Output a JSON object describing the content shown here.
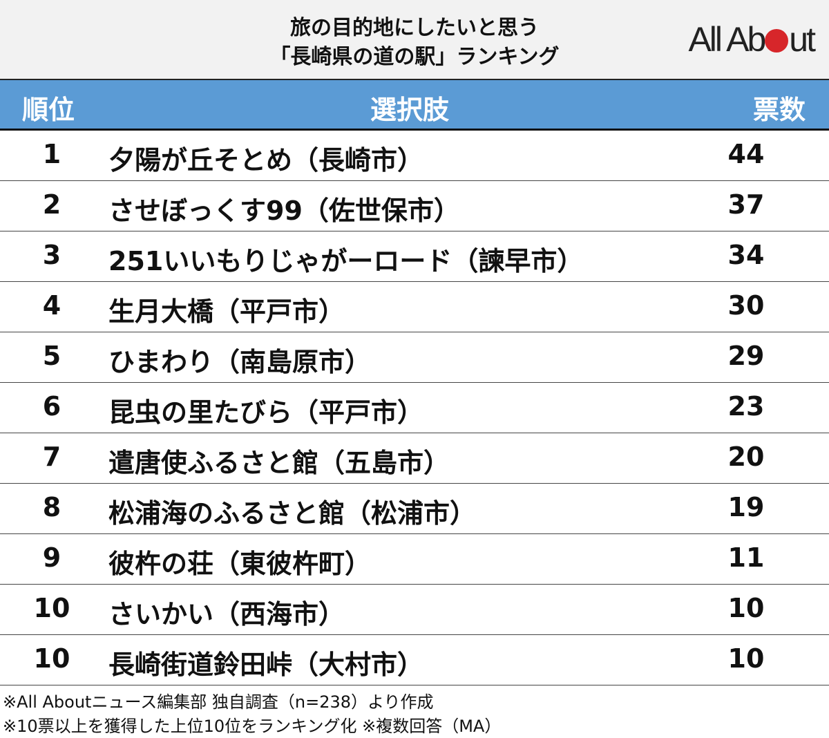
{
  "title_line1": "旅の目的地にしたいと思う",
  "title_line2": "「長崎県の道の駅」ランキング",
  "logo_text": "All About",
  "colors": {
    "header_bg": "#5b9bd5",
    "top_bg": "#f2f2f2",
    "logo_dot": "#d7262a"
  },
  "chart_data": {
    "type": "table",
    "columns": [
      "順位",
      "選択肢",
      "票数"
    ],
    "rows": [
      {
        "rank": "1",
        "name": "夕陽が丘そとめ（長崎市）",
        "votes": 44
      },
      {
        "rank": "2",
        "name": "させぼっくす99（佐世保市）",
        "votes": 37
      },
      {
        "rank": "3",
        "name": "251いいもりじゃがーロード（諫早市）",
        "votes": 34
      },
      {
        "rank": "4",
        "name": "生月大橋（平戸市）",
        "votes": 30
      },
      {
        "rank": "5",
        "name": "ひまわり（南島原市）",
        "votes": 29
      },
      {
        "rank": "6",
        "name": "昆虫の里たびら（平戸市）",
        "votes": 23
      },
      {
        "rank": "7",
        "name": "遣唐使ふるさと館（五島市）",
        "votes": 20
      },
      {
        "rank": "8",
        "name": "松浦海のふるさと館（松浦市）",
        "votes": 19
      },
      {
        "rank": "9",
        "name": "彼杵の荘（東彼杵町）",
        "votes": 11
      },
      {
        "rank": "10",
        "name": "さいかい（西海市）",
        "votes": 10
      },
      {
        "rank": "10",
        "name": "長崎街道鈴田峠（大村市）",
        "votes": 10
      }
    ]
  },
  "footnotes": [
    "※All Aboutニュース編集部 独自調査（n=238）より作成",
    "※10票以上を獲得した上位10位をランキング化 ※複数回答（MA）"
  ]
}
